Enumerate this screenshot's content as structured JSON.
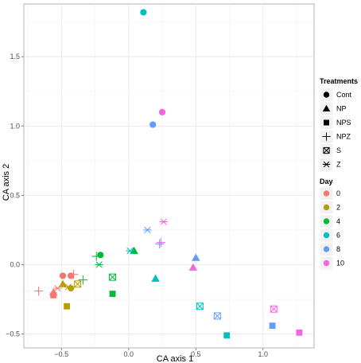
{
  "chart_data": {
    "type": "scatter",
    "xlabel": "CA axis 1",
    "ylabel": "CA axis 2",
    "xlim": [
      -0.78,
      1.38
    ],
    "ylim": [
      -0.6,
      1.88
    ],
    "x_ticks": [
      -0.5,
      0.0,
      0.5,
      1.0
    ],
    "x_tick_labels": [
      "−0.5",
      "0.0",
      "0.5",
      "1.0"
    ],
    "y_ticks": [
      -0.5,
      0.0,
      0.5,
      1.0,
      1.5
    ],
    "y_tick_labels": [
      "−0.5",
      "0.0",
      "0.5",
      "1.0",
      "1.5"
    ],
    "grid": true,
    "legend_placement": "right",
    "legends": {
      "shape": {
        "title": "Treatments",
        "items": [
          {
            "label": "Cont",
            "shape": "circle"
          },
          {
            "label": "NP",
            "shape": "triangle"
          },
          {
            "label": "NPS",
            "shape": "square"
          },
          {
            "label": "NPZ",
            "shape": "plus"
          },
          {
            "label": "S",
            "shape": "boxcross"
          },
          {
            "label": "Z",
            "shape": "asterisk"
          }
        ]
      },
      "color": {
        "title": "Day",
        "items": [
          {
            "label": "0",
            "color": "#F8766D"
          },
          {
            "label": "2",
            "color": "#B79F00"
          },
          {
            "label": "4",
            "color": "#00BA38"
          },
          {
            "label": "6",
            "color": "#00BFC4"
          },
          {
            "label": "8",
            "color": "#619CFF"
          },
          {
            "label": "10",
            "color": "#F564E3"
          }
        ]
      }
    },
    "points": [
      {
        "x": -0.49,
        "y": -0.08,
        "treatment": "Cont",
        "day": "0"
      },
      {
        "x": -0.43,
        "y": -0.08,
        "treatment": "Cont",
        "day": "0"
      },
      {
        "x": -0.43,
        "y": -0.17,
        "treatment": "Cont",
        "day": "2"
      },
      {
        "x": -0.21,
        "y": 0.07,
        "treatment": "Cont",
        "day": "4"
      },
      {
        "x": 0.11,
        "y": 1.82,
        "treatment": "Cont",
        "day": "6"
      },
      {
        "x": 0.18,
        "y": 1.01,
        "treatment": "Cont",
        "day": "8"
      },
      {
        "x": 0.25,
        "y": 1.1,
        "treatment": "Cont",
        "day": "10"
      },
      {
        "x": -0.56,
        "y": -0.2,
        "treatment": "NP",
        "day": "0"
      },
      {
        "x": -0.49,
        "y": -0.14,
        "treatment": "NP",
        "day": "2"
      },
      {
        "x": 0.04,
        "y": 0.1,
        "treatment": "NP",
        "day": "4"
      },
      {
        "x": 0.2,
        "y": -0.1,
        "treatment": "NP",
        "day": "6"
      },
      {
        "x": 0.5,
        "y": 0.05,
        "treatment": "NP",
        "day": "8"
      },
      {
        "x": 0.48,
        "y": -0.02,
        "treatment": "NP",
        "day": "10"
      },
      {
        "x": -0.56,
        "y": -0.22,
        "treatment": "NPS",
        "day": "0"
      },
      {
        "x": -0.46,
        "y": -0.3,
        "treatment": "NPS",
        "day": "2"
      },
      {
        "x": -0.12,
        "y": -0.21,
        "treatment": "NPS",
        "day": "4"
      },
      {
        "x": 0.73,
        "y": -0.51,
        "treatment": "NPS",
        "day": "6"
      },
      {
        "x": 1.07,
        "y": -0.44,
        "treatment": "NPS",
        "day": "8"
      },
      {
        "x": 1.27,
        "y": -0.49,
        "treatment": "NPS",
        "day": "10"
      },
      {
        "x": -0.67,
        "y": -0.19,
        "treatment": "NPZ",
        "day": "0"
      },
      {
        "x": -0.41,
        "y": -0.07,
        "treatment": "NPZ",
        "day": "0"
      },
      {
        "x": -0.34,
        "y": -0.11,
        "treatment": "NPZ",
        "day": "4"
      },
      {
        "x": -0.24,
        "y": 0.06,
        "treatment": "NPZ",
        "day": "4"
      },
      {
        "x": 0.23,
        "y": 0.15,
        "treatment": "NPZ",
        "day": "8"
      },
      {
        "x": 0.24,
        "y": 0.16,
        "treatment": "NPZ",
        "day": "10"
      },
      {
        "x": -0.38,
        "y": -0.14,
        "treatment": "S",
        "day": "2"
      },
      {
        "x": -0.12,
        "y": -0.09,
        "treatment": "S",
        "day": "4"
      },
      {
        "x": 0.53,
        "y": -0.3,
        "treatment": "S",
        "day": "6"
      },
      {
        "x": 0.66,
        "y": -0.37,
        "treatment": "S",
        "day": "8"
      },
      {
        "x": 1.08,
        "y": -0.32,
        "treatment": "S",
        "day": "10"
      },
      {
        "x": -0.53,
        "y": -0.17,
        "treatment": "Z",
        "day": "0"
      },
      {
        "x": -0.45,
        "y": -0.16,
        "treatment": "Z",
        "day": "2"
      },
      {
        "x": -0.22,
        "y": 0.0,
        "treatment": "Z",
        "day": "4"
      },
      {
        "x": 0.01,
        "y": 0.1,
        "treatment": "Z",
        "day": "6"
      },
      {
        "x": 0.14,
        "y": 0.25,
        "treatment": "Z",
        "day": "8"
      },
      {
        "x": 0.26,
        "y": 0.31,
        "treatment": "Z",
        "day": "10"
      }
    ]
  }
}
